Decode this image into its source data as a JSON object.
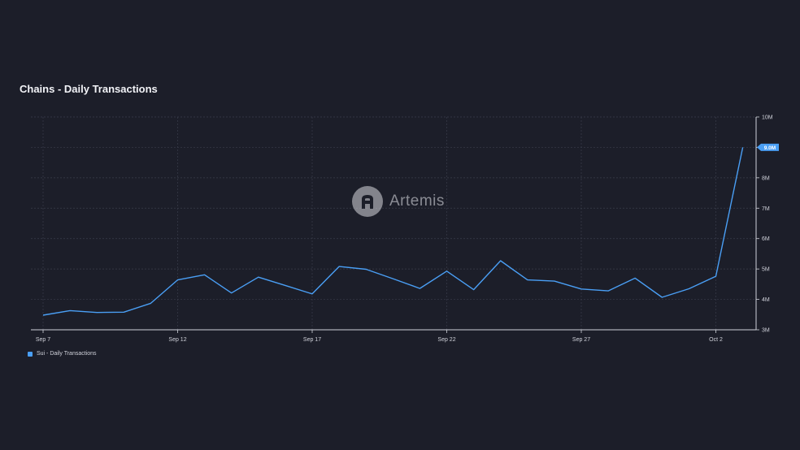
{
  "chart_data": {
    "type": "line",
    "title": "Chains - Daily Transactions",
    "x": [
      "Sep 7",
      "Sep 8",
      "Sep 9",
      "Sep 10",
      "Sep 11",
      "Sep 12",
      "Sep 13",
      "Sep 14",
      "Sep 15",
      "Sep 16",
      "Sep 17",
      "Sep 18",
      "Sep 19",
      "Sep 20",
      "Sep 21",
      "Sep 22",
      "Sep 23",
      "Sep 24",
      "Sep 25",
      "Sep 26",
      "Sep 27",
      "Sep 28",
      "Sep 29",
      "Sep 30",
      "Oct 1",
      "Oct 2",
      "Oct 3"
    ],
    "x_tick_labels": [
      "Sep 7",
      "Sep 12",
      "Sep 17",
      "Sep 22",
      "Sep 27",
      "Oct 2"
    ],
    "y_tick_labels": [
      "10M",
      "9M",
      "8M",
      "7M",
      "6M",
      "5M",
      "4M",
      "3M"
    ],
    "ylim": [
      3000000,
      10000000
    ],
    "series": [
      {
        "name": "Sui - Daily Transactions",
        "color": "#4a9ff5",
        "values": [
          3480000,
          3630000,
          3570000,
          3580000,
          3870000,
          4640000,
          4810000,
          4210000,
          4730000,
          4460000,
          4180000,
          5080000,
          4990000,
          4680000,
          4360000,
          4930000,
          4320000,
          5270000,
          4640000,
          4600000,
          4340000,
          4280000,
          4700000,
          4070000,
          4350000,
          4760000,
          9000000
        ]
      }
    ],
    "last_value_label": "9.0M",
    "grid": true,
    "legend_position": "bottom-left"
  },
  "watermark": {
    "text": "Artemis",
    "icon": "artemis-logo-icon"
  },
  "colors": {
    "background": "#1c1e29",
    "grid": "#3a3d4b",
    "axis": "#d0d2da",
    "line": "#4a9ff5",
    "badge": "#4a9ff5"
  }
}
